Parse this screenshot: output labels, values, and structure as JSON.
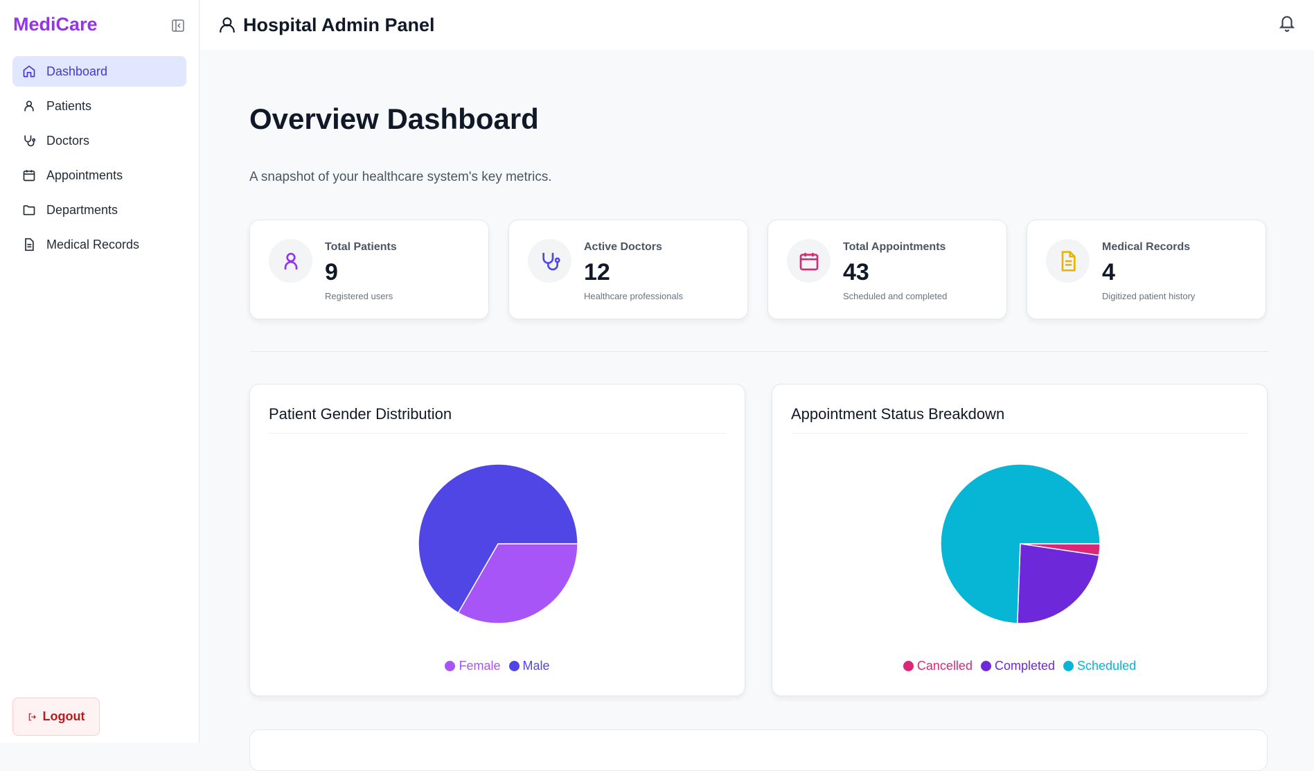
{
  "sidebar": {
    "logo": "MediCare",
    "items": [
      {
        "label": "Dashboard",
        "icon": "home-icon"
      },
      {
        "label": "Patients",
        "icon": "user-icon"
      },
      {
        "label": "Doctors",
        "icon": "stethoscope-icon"
      },
      {
        "label": "Appointments",
        "icon": "calendar-icon"
      },
      {
        "label": "Departments",
        "icon": "folder-icon"
      },
      {
        "label": "Medical Records",
        "icon": "file-text-icon"
      }
    ],
    "logout": "Logout"
  },
  "header": {
    "title": "Hospital Admin Panel"
  },
  "main": {
    "title": "Overview Dashboard",
    "subtitle": "A snapshot of your healthcare system's key metrics.",
    "stats": [
      {
        "label": "Total Patients",
        "value": "9",
        "desc": "Registered users",
        "color": "#9333ea"
      },
      {
        "label": "Active Doctors",
        "value": "12",
        "desc": "Healthcare professionals",
        "color": "#4f46e5"
      },
      {
        "label": "Total Appointments",
        "value": "43",
        "desc": "Scheduled and completed",
        "color": "#db2777"
      },
      {
        "label": "Medical Records",
        "value": "4",
        "desc": "Digitized patient history",
        "color": "#eab308"
      }
    ]
  },
  "chart_data": [
    {
      "type": "pie",
      "title": "Patient Gender Distribution",
      "categories": [
        "Female",
        "Male"
      ],
      "values": [
        3,
        6
      ],
      "colors": [
        "#a855f7",
        "#4f46e5"
      ],
      "legend": "bottom"
    },
    {
      "type": "pie",
      "title": "Appointment Status Breakdown",
      "categories": [
        "Cancelled",
        "Completed",
        "Scheduled"
      ],
      "values": [
        1,
        10,
        32
      ],
      "colors": [
        "#db2777",
        "#6d28d9",
        "#06b6d4"
      ],
      "legend": "bottom"
    }
  ]
}
